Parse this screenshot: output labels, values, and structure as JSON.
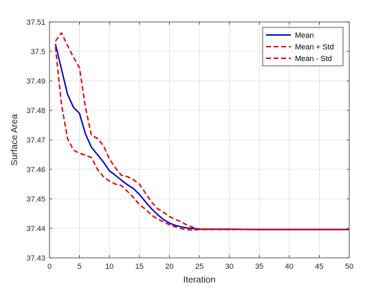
{
  "chart_data": {
    "type": "line",
    "title": "",
    "xlabel": "Iteration",
    "ylabel": "Surface Area",
    "xlim": [
      0,
      50
    ],
    "ylim": [
      37.43,
      37.51
    ],
    "xticks": [
      0,
      5,
      10,
      15,
      20,
      25,
      30,
      35,
      40,
      45,
      50
    ],
    "yticks": [
      37.43,
      37.44,
      37.45,
      37.46,
      37.47,
      37.48,
      37.49,
      37.5,
      37.51
    ],
    "grid": true,
    "legend_position": "top-right",
    "x": [
      1,
      2,
      3,
      4,
      5,
      6,
      7,
      8,
      9,
      10,
      11,
      12,
      13,
      14,
      15,
      16,
      17,
      18,
      19,
      20,
      21,
      22,
      23,
      24,
      25,
      26,
      30,
      35,
      40,
      45,
      50
    ],
    "series": [
      {
        "name": "Mean",
        "color": "#0000cc",
        "style": "solid",
        "values": [
          37.5025,
          37.494,
          37.4855,
          37.481,
          37.479,
          37.472,
          37.4675,
          37.465,
          37.4625,
          37.4595,
          37.458,
          37.4563,
          37.4548,
          37.4535,
          37.4515,
          37.449,
          37.4467,
          37.4447,
          37.443,
          37.4418,
          37.441,
          37.4405,
          37.4401,
          37.4399,
          37.4397,
          37.4397,
          37.4397,
          37.4396,
          37.4396,
          37.4396,
          37.4396
        ]
      },
      {
        "name": "Mean + Std",
        "color": "#e60000",
        "style": "dashed",
        "values": [
          37.5035,
          37.5063,
          37.502,
          37.498,
          37.4945,
          37.481,
          37.4715,
          37.4705,
          37.468,
          37.4635,
          37.4605,
          37.458,
          37.4575,
          37.4565,
          37.455,
          37.452,
          37.449,
          37.4467,
          37.4455,
          37.444,
          37.443,
          37.4422,
          37.441,
          37.4403,
          37.4398,
          37.4397,
          37.4397,
          37.4396,
          37.4396,
          37.4396,
          37.4396
        ]
      },
      {
        "name": "Mean - Std",
        "color": "#e60000",
        "style": "dashed",
        "values": [
          37.5015,
          37.482,
          37.4705,
          37.4665,
          37.4655,
          37.4648,
          37.464,
          37.46,
          37.4575,
          37.456,
          37.455,
          37.4545,
          37.4525,
          37.4505,
          37.448,
          37.4465,
          37.4445,
          37.4432,
          37.4422,
          37.4412,
          37.4405,
          37.4399,
          37.4395,
          37.4394,
          37.4396,
          37.4396,
          37.4396,
          37.4396,
          37.4396,
          37.4396,
          37.4396
        ]
      }
    ]
  }
}
